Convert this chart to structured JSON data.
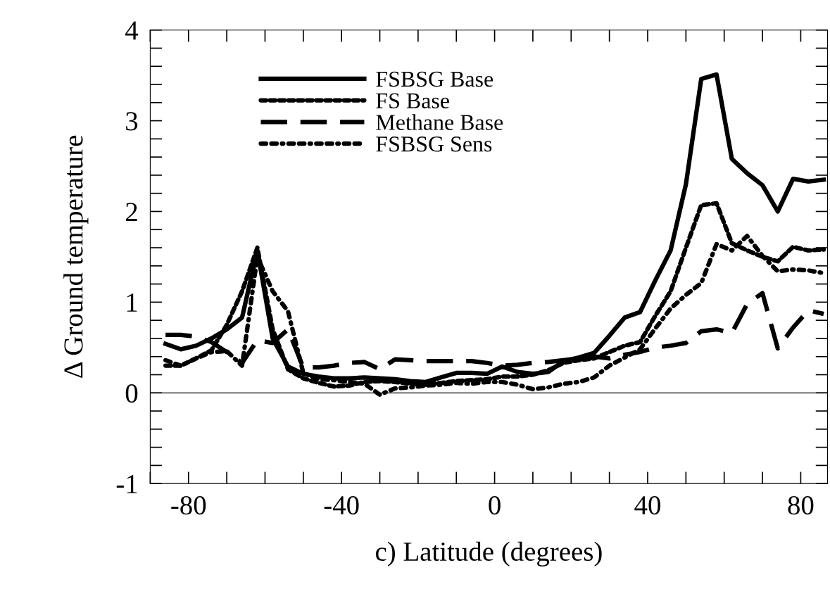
{
  "chart_data": {
    "type": "line",
    "xlabel": "c) Latitude (degrees)",
    "ylabel": "Δ Ground temperature",
    "x": [
      -86,
      -82,
      -78,
      -74,
      -70,
      -66,
      -62,
      -58,
      -54,
      -50,
      -46,
      -42,
      -38,
      -34,
      -30,
      -26,
      -22,
      -18,
      -14,
      -10,
      -6,
      -2,
      2,
      6,
      10,
      14,
      18,
      22,
      26,
      30,
      34,
      38,
      42,
      46,
      50,
      54,
      58,
      62,
      66,
      70,
      74,
      78,
      82,
      86
    ],
    "xlim": [
      -90,
      87
    ],
    "xticks": [
      -80,
      -40,
      0,
      40,
      80
    ],
    "ylim": [
      -1,
      4
    ],
    "yticks": [
      -1,
      0,
      1,
      2,
      3,
      4
    ],
    "grid": false,
    "legend": "top left",
    "marker": "none",
    "ref_lines": [
      {
        "axis": "y",
        "value": 0,
        "color": "#000000",
        "line_style": "solid"
      }
    ],
    "series": [
      {
        "name": "FSBSG Base",
        "color": "#000000",
        "line_style": "solid",
        "values": [
          0.54,
          0.48,
          0.52,
          0.6,
          0.7,
          0.83,
          1.57,
          0.6,
          0.29,
          0.21,
          0.18,
          0.16,
          0.16,
          0.17,
          0.16,
          0.15,
          0.13,
          0.12,
          0.17,
          0.22,
          0.22,
          0.21,
          0.29,
          0.23,
          0.21,
          0.23,
          0.35,
          0.39,
          0.44,
          0.63,
          0.83,
          0.89,
          1.24,
          1.57,
          2.3,
          3.46,
          3.51,
          2.58,
          2.42,
          2.29,
          2.0,
          2.36,
          2.33,
          2.35
        ]
      },
      {
        "name": "FS Base",
        "color": "#000000",
        "line_style": "dotted",
        "values": [
          0.3,
          0.3,
          0.38,
          0.47,
          0.75,
          1.12,
          1.6,
          0.7,
          0.26,
          0.16,
          0.11,
          0.07,
          0.08,
          0.12,
          0.13,
          0.12,
          0.1,
          0.09,
          0.11,
          0.13,
          0.14,
          0.15,
          0.18,
          0.18,
          0.2,
          0.25,
          0.33,
          0.36,
          0.38,
          0.45,
          0.52,
          0.56,
          0.85,
          1.12,
          1.6,
          2.07,
          2.09,
          1.65,
          1.57,
          1.5,
          1.45,
          1.61,
          1.57,
          1.58
        ]
      },
      {
        "name": "Methane Base",
        "color": "#000000",
        "line_style": "dashed",
        "values": [
          0.64,
          0.64,
          0.62,
          0.56,
          0.45,
          0.33,
          0.58,
          0.55,
          0.7,
          0.28,
          0.28,
          0.3,
          0.33,
          0.34,
          0.26,
          0.37,
          0.36,
          0.35,
          0.35,
          0.35,
          0.35,
          0.33,
          0.3,
          0.31,
          0.33,
          0.34,
          0.36,
          0.38,
          0.4,
          0.38,
          0.42,
          0.45,
          0.5,
          0.52,
          0.55,
          0.68,
          0.7,
          0.66,
          0.98,
          1.1,
          0.49,
          0.72,
          0.91,
          0.87
        ]
      },
      {
        "name": "FSBSG Sens",
        "color": "#000000",
        "line_style": "dashdot",
        "values": [
          0.36,
          0.3,
          0.38,
          0.45,
          0.46,
          0.3,
          1.5,
          1.12,
          0.9,
          0.22,
          0.15,
          0.14,
          0.12,
          0.1,
          -0.02,
          0.05,
          0.06,
          0.08,
          0.09,
          0.11,
          0.1,
          0.12,
          0.12,
          0.09,
          0.04,
          0.06,
          0.1,
          0.12,
          0.17,
          0.3,
          0.39,
          0.48,
          0.71,
          0.93,
          1.08,
          1.21,
          1.64,
          1.57,
          1.73,
          1.51,
          1.34,
          1.36,
          1.35,
          1.32
        ]
      }
    ]
  }
}
